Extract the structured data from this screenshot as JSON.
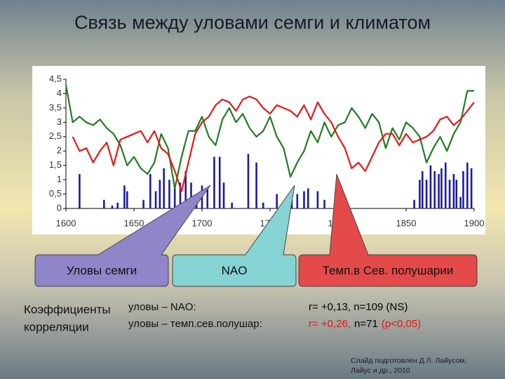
{
  "title": "Связь между уловами семги и климатом",
  "chart_data": {
    "type": "line",
    "x": [
      1600,
      1605,
      1610,
      1615,
      1620,
      1625,
      1630,
      1635,
      1640,
      1645,
      1650,
      1655,
      1660,
      1665,
      1670,
      1675,
      1680,
      1685,
      1690,
      1695,
      1700,
      1705,
      1710,
      1715,
      1720,
      1725,
      1730,
      1735,
      1740,
      1745,
      1750,
      1755,
      1760,
      1765,
      1770,
      1775,
      1780,
      1785,
      1790,
      1795,
      1800,
      1805,
      1810,
      1815,
      1820,
      1825,
      1830,
      1835,
      1840,
      1845,
      1850,
      1855,
      1860,
      1865,
      1870,
      1875,
      1880,
      1885,
      1890,
      1895,
      1900
    ],
    "series": [
      {
        "name": "Уловы семги",
        "type": "bar",
        "color": "#1c1c9c",
        "x": [
          1610,
          1628,
          1634,
          1638,
          1643,
          1645,
          1657,
          1662,
          1666,
          1669,
          1672,
          1676,
          1680,
          1684,
          1688,
          1692,
          1696,
          1700,
          1704,
          1709,
          1713,
          1716,
          1722,
          1734,
          1740,
          1745,
          1755,
          1766,
          1770,
          1775,
          1778,
          1785,
          1790,
          1856,
          1860,
          1862,
          1865,
          1868,
          1871,
          1874,
          1876,
          1879,
          1882,
          1885,
          1887,
          1890,
          1892,
          1895,
          1898
        ],
        "values": [
          1.2,
          0.3,
          0.1,
          0.2,
          0.8,
          0.6,
          0.3,
          1.2,
          0.6,
          1.0,
          1.4,
          1.0,
          0.8,
          0.9,
          1.3,
          0.9,
          0.5,
          0.8,
          0.7,
          1.8,
          1.8,
          0.9,
          0.2,
          1.9,
          1.6,
          0.2,
          0.5,
          0.3,
          0.5,
          0.6,
          0.7,
          0.6,
          0.3,
          0.3,
          1.0,
          1.3,
          1.0,
          1.5,
          1.3,
          1.2,
          1.4,
          1.6,
          1.0,
          1.2,
          1.0,
          0.4,
          1.3,
          1.6,
          1.4
        ]
      },
      {
        "name": "NAO",
        "type": "line",
        "color": "#237a23",
        "values": [
          4.3,
          3.0,
          3.2,
          3.0,
          2.9,
          3.1,
          2.8,
          2.6,
          2.2,
          1.5,
          1.8,
          1.4,
          1.2,
          1.6,
          2.6,
          2.1,
          0.7,
          1.8,
          2.7,
          2.7,
          3.2,
          2.5,
          2.2,
          3.1,
          3.5,
          3.0,
          3.3,
          2.8,
          2.5,
          2.7,
          3.2,
          2.5,
          2.1,
          1.1,
          1.6,
          2.0,
          2.7,
          2.3,
          3.0,
          2.5,
          2.9,
          3.0,
          3.5,
          3.2,
          2.8,
          3.3,
          3.0,
          2.1,
          2.8,
          2.4,
          3.0,
          2.8,
          2.5,
          1.6,
          2.1,
          2.5,
          2.0,
          2.6,
          3.0,
          4.1,
          4.1
        ]
      },
      {
        "name": "Темп.в Сев. полушарии",
        "type": "line",
        "color": "#e01a1a",
        "values": [
          null,
          2.5,
          2.0,
          2.1,
          1.6,
          2.0,
          2.3,
          1.5,
          2.4,
          2.5,
          2.6,
          2.7,
          2.3,
          2.7,
          2.1,
          1.9,
          1.3,
          0.6,
          1.6,
          2.6,
          3.0,
          3.2,
          3.6,
          3.8,
          3.7,
          3.4,
          3.8,
          3.9,
          3.8,
          3.5,
          3.3,
          3.6,
          3.5,
          3.4,
          3.2,
          3.6,
          3.1,
          3.7,
          3.3,
          3.0,
          2.5,
          2.1,
          1.4,
          1.6,
          1.3,
          1.8,
          2.3,
          2.6,
          2.6,
          2.2,
          2.6,
          2.3,
          2.4,
          2.5,
          2.7,
          3.1,
          3.2,
          2.9,
          3.1,
          3.4,
          3.7
        ]
      }
    ],
    "xlim": [
      1600,
      1900
    ],
    "xticks": [
      1600,
      1650,
      1700,
      1750,
      1800,
      1850,
      1900
    ],
    "ylim": [
      0,
      4.5
    ],
    "yticks": [
      0,
      {
        "value": 0.5,
        "label": "0,5"
      },
      1,
      {
        "value": 1.5,
        "label": "1,5"
      },
      2,
      {
        "value": 2.5,
        "label": "2,5"
      },
      3,
      {
        "value": 3.5,
        "label": "3,5"
      },
      4,
      {
        "value": 4.5,
        "label": "4,5"
      }
    ],
    "grid": false
  },
  "correlation": {
    "heading": [
      "Коэффициенты",
      "корреляции"
    ],
    "rows": [
      {
        "label": "уловы – NAO:",
        "parts": [
          {
            "text": "r= +0,13, n=109 (NS)",
            "color": "#000000"
          }
        ]
      },
      {
        "label": "уловы – темп.сев.полушар:",
        "parts": [
          {
            "text": "r= +0,26,",
            "color": "#e01a1a"
          },
          {
            "text": "n=71",
            "color": "#000000"
          },
          {
            "text": "(p<0,05)",
            "color": "#e01a1a"
          }
        ]
      }
    ]
  },
  "credit": [
    "Слайд подготовлен Д.Л. Лайусом,",
    "Лайус и др., 2010"
  ]
}
